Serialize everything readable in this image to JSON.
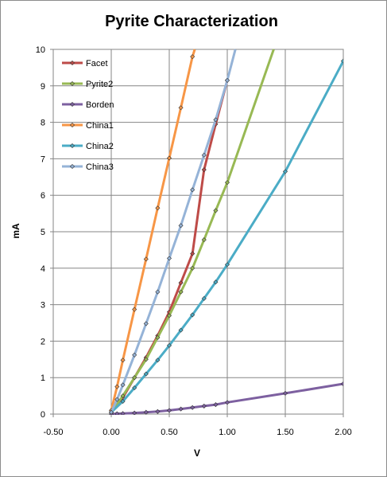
{
  "chart_data": {
    "type": "line",
    "title": "Pyrite Characterization",
    "xlabel": "V",
    "ylabel": "mA",
    "xlim": [
      -0.5,
      2.0
    ],
    "ylim": [
      0,
      10
    ],
    "xticks": [
      "-0.50",
      "0.00",
      "0.50",
      "1.00",
      "1.50",
      "2.00"
    ],
    "yticks": [
      "0",
      "1",
      "2",
      "3",
      "4",
      "5",
      "6",
      "7",
      "8",
      "9",
      "10"
    ],
    "grid": true,
    "legend_position": "top-left",
    "series": [
      {
        "name": "Facet",
        "color": "#be4b48",
        "x": [
          0.0,
          0.1,
          0.2,
          0.3,
          0.4,
          0.5,
          0.6,
          0.7,
          0.8,
          0.9,
          1.0
        ],
        "y": [
          0.05,
          0.45,
          1.0,
          1.55,
          2.15,
          2.8,
          3.6,
          4.4,
          6.7,
          7.95,
          9.15
        ]
      },
      {
        "name": "Pyrite2",
        "color": "#98b954",
        "x": [
          0.0,
          0.1,
          0.2,
          0.3,
          0.4,
          0.5,
          0.6,
          0.7,
          0.8,
          0.9,
          1.0,
          1.4
        ],
        "y": [
          0.05,
          0.5,
          1.0,
          1.5,
          2.1,
          2.7,
          3.35,
          4.0,
          4.78,
          5.58,
          6.35,
          10.0
        ]
      },
      {
        "name": "Borden",
        "color": "#7d60a0",
        "x": [
          0.0,
          0.05,
          0.1,
          0.2,
          0.3,
          0.4,
          0.5,
          0.6,
          0.7,
          0.8,
          0.9,
          1.0,
          1.5,
          2.0
        ],
        "y": [
          0.0,
          0.01,
          0.015,
          0.03,
          0.05,
          0.07,
          0.1,
          0.14,
          0.18,
          0.22,
          0.26,
          0.32,
          0.57,
          0.83
        ]
      },
      {
        "name": "China1",
        "color": "#f79646",
        "x": [
          0.0,
          0.05,
          0.1,
          0.2,
          0.3,
          0.4,
          0.5,
          0.6,
          0.7,
          0.72
        ],
        "y": [
          0.1,
          0.75,
          1.48,
          2.87,
          4.25,
          5.65,
          7.02,
          8.4,
          9.8,
          10.0
        ]
      },
      {
        "name": "China2",
        "color": "#4bacc6",
        "x": [
          0.0,
          0.1,
          0.2,
          0.3,
          0.4,
          0.5,
          0.6,
          0.7,
          0.8,
          0.9,
          1.0,
          1.5,
          2.0
        ],
        "y": [
          0.05,
          0.35,
          0.72,
          1.1,
          1.48,
          1.88,
          2.3,
          2.72,
          3.17,
          3.62,
          4.1,
          6.65,
          9.68
        ]
      },
      {
        "name": "China3",
        "color": "#95b3d7",
        "x": [
          0.0,
          0.05,
          0.1,
          0.2,
          0.3,
          0.4,
          0.5,
          0.6,
          0.7,
          0.8,
          0.9,
          1.0,
          1.07
        ],
        "y": [
          0.05,
          0.4,
          0.8,
          1.62,
          2.48,
          3.35,
          4.27,
          5.17,
          6.15,
          7.1,
          8.07,
          9.15,
          10.0
        ]
      }
    ]
  }
}
